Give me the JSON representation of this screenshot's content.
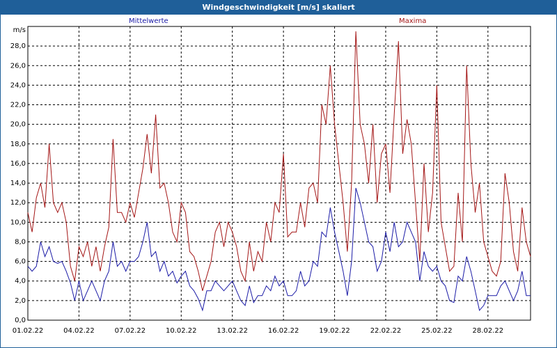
{
  "window": {
    "title": "Windgeschwindigkeit [m/s] skaliert"
  },
  "colors": {
    "titlebar": "#1f5f99",
    "mean": "#1a1aa6",
    "max": "#a31515",
    "grid": "#000000"
  },
  "chart_data": {
    "type": "line",
    "title": "Windgeschwindigkeit [m/s] skaliert",
    "ylabel": "m/s",
    "xlabel": "",
    "ylim": [
      0,
      30
    ],
    "xlim": [
      0,
      29.5
    ],
    "grid": true,
    "yticks": [
      "0,0",
      "2,0",
      "4,0",
      "6,0",
      "8,0",
      "10,0",
      "12,0",
      "14,0",
      "16,0",
      "18,0",
      "20,0",
      "22,0",
      "24,0",
      "26,0",
      "28,0"
    ],
    "xticks": [
      "01.02.22",
      "04.02.22",
      "07.02.22",
      "10.02.22",
      "13.02.22",
      "16.02.22",
      "19.02.22",
      "22.02.22",
      "25.02.22",
      "28.02.22"
    ],
    "series": [
      {
        "name": "Mittelwerte",
        "values": [
          [
            0.0,
            5.5
          ],
          [
            0.25,
            5.0
          ],
          [
            0.5,
            5.5
          ],
          [
            0.75,
            8.0
          ],
          [
            1.0,
            6.5
          ],
          [
            1.25,
            7.5
          ],
          [
            1.5,
            6.0
          ],
          [
            1.75,
            5.8
          ],
          [
            2.0,
            6.0
          ],
          [
            2.25,
            5.0
          ],
          [
            2.5,
            3.8
          ],
          [
            2.75,
            2.0
          ],
          [
            3.0,
            4.0
          ],
          [
            3.25,
            2.0
          ],
          [
            3.5,
            3.0
          ],
          [
            3.75,
            4.0
          ],
          [
            4.0,
            3.0
          ],
          [
            4.25,
            2.0
          ],
          [
            4.5,
            4.0
          ],
          [
            4.75,
            5.0
          ],
          [
            5.0,
            8.0
          ],
          [
            5.25,
            5.5
          ],
          [
            5.5,
            6.0
          ],
          [
            5.75,
            5.0
          ],
          [
            6.0,
            6.0
          ],
          [
            6.25,
            6.0
          ],
          [
            6.5,
            6.5
          ],
          [
            6.75,
            8.0
          ],
          [
            7.0,
            10.0
          ],
          [
            7.25,
            6.5
          ],
          [
            7.5,
            7.0
          ],
          [
            7.75,
            5.0
          ],
          [
            8.0,
            6.0
          ],
          [
            8.25,
            4.5
          ],
          [
            8.5,
            5.0
          ],
          [
            8.75,
            3.8
          ],
          [
            9.0,
            4.5
          ],
          [
            9.25,
            5.0
          ],
          [
            9.5,
            3.5
          ],
          [
            9.75,
            3.0
          ],
          [
            10.0,
            2.2
          ],
          [
            10.25,
            1.0
          ],
          [
            10.5,
            3.0
          ],
          [
            10.75,
            3.0
          ],
          [
            11.0,
            4.0
          ],
          [
            11.25,
            3.5
          ],
          [
            11.5,
            3.0
          ],
          [
            11.75,
            3.5
          ],
          [
            12.0,
            4.0
          ],
          [
            12.25,
            3.0
          ],
          [
            12.5,
            2.0
          ],
          [
            12.75,
            1.5
          ],
          [
            13.0,
            3.5
          ],
          [
            13.25,
            1.8
          ],
          [
            13.5,
            2.5
          ],
          [
            13.75,
            2.5
          ],
          [
            14.0,
            3.5
          ],
          [
            14.25,
            3.0
          ],
          [
            14.5,
            4.5
          ],
          [
            14.75,
            3.5
          ],
          [
            15.0,
            4.0
          ],
          [
            15.25,
            2.5
          ],
          [
            15.5,
            2.5
          ],
          [
            15.75,
            3.0
          ],
          [
            16.0,
            5.0
          ],
          [
            16.25,
            3.5
          ],
          [
            16.5,
            4.0
          ],
          [
            16.75,
            6.0
          ],
          [
            17.0,
            5.5
          ],
          [
            17.25,
            9.0
          ],
          [
            17.5,
            8.5
          ],
          [
            17.75,
            11.5
          ],
          [
            18.0,
            9.0
          ],
          [
            18.25,
            7.0
          ],
          [
            18.5,
            5.0
          ],
          [
            18.75,
            2.5
          ],
          [
            19.0,
            6.0
          ],
          [
            19.25,
            13.5
          ],
          [
            19.5,
            12.0
          ],
          [
            19.75,
            10.0
          ],
          [
            20.0,
            8.0
          ],
          [
            20.25,
            7.5
          ],
          [
            20.5,
            5.0
          ],
          [
            20.75,
            6.0
          ],
          [
            21.0,
            9.0
          ],
          [
            21.25,
            7.0
          ],
          [
            21.5,
            10.0
          ],
          [
            21.75,
            7.5
          ],
          [
            22.0,
            8.0
          ],
          [
            22.25,
            10.0
          ],
          [
            22.5,
            9.0
          ],
          [
            22.75,
            8.0
          ],
          [
            23.0,
            4.0
          ],
          [
            23.25,
            7.0
          ],
          [
            23.5,
            5.5
          ],
          [
            23.75,
            5.0
          ],
          [
            24.0,
            5.5
          ],
          [
            24.25,
            4.0
          ],
          [
            24.5,
            3.5
          ],
          [
            24.75,
            2.0
          ],
          [
            25.0,
            1.8
          ],
          [
            25.25,
            4.5
          ],
          [
            25.5,
            4.0
          ],
          [
            25.75,
            6.5
          ],
          [
            26.0,
            5.0
          ],
          [
            26.25,
            3.0
          ],
          [
            26.5,
            1.0
          ],
          [
            26.75,
            1.5
          ],
          [
            27.0,
            2.5
          ],
          [
            27.25,
            2.5
          ],
          [
            27.5,
            2.5
          ],
          [
            27.75,
            3.5
          ],
          [
            28.0,
            4.0
          ],
          [
            28.25,
            3.0
          ],
          [
            28.5,
            2.0
          ],
          [
            28.75,
            3.0
          ],
          [
            29.0,
            5.0
          ],
          [
            29.25,
            2.5
          ],
          [
            29.5,
            2.5
          ]
        ]
      },
      {
        "name": "Maxima",
        "values": [
          [
            0.0,
            11.0
          ],
          [
            0.25,
            9.0
          ],
          [
            0.5,
            12.5
          ],
          [
            0.75,
            14.0
          ],
          [
            1.0,
            11.5
          ],
          [
            1.25,
            18.0
          ],
          [
            1.5,
            12.0
          ],
          [
            1.75,
            11.0
          ],
          [
            2.0,
            12.0
          ],
          [
            2.25,
            10.0
          ],
          [
            2.5,
            5.5
          ],
          [
            2.75,
            4.0
          ],
          [
            3.0,
            7.5
          ],
          [
            3.25,
            6.5
          ],
          [
            3.5,
            8.0
          ],
          [
            3.75,
            5.5
          ],
          [
            4.0,
            7.5
          ],
          [
            4.25,
            5.0
          ],
          [
            4.5,
            7.5
          ],
          [
            4.75,
            9.5
          ],
          [
            5.0,
            18.5
          ],
          [
            5.25,
            11.0
          ],
          [
            5.5,
            11.0
          ],
          [
            5.75,
            10.0
          ],
          [
            6.0,
            12.0
          ],
          [
            6.25,
            10.5
          ],
          [
            6.5,
            13.0
          ],
          [
            6.75,
            15.5
          ],
          [
            7.0,
            19.0
          ],
          [
            7.25,
            15.0
          ],
          [
            7.5,
            21.0
          ],
          [
            7.75,
            13.5
          ],
          [
            8.0,
            14.0
          ],
          [
            8.25,
            12.0
          ],
          [
            8.5,
            9.0
          ],
          [
            8.75,
            8.0
          ],
          [
            9.0,
            12.0
          ],
          [
            9.25,
            11.0
          ],
          [
            9.5,
            7.0
          ],
          [
            9.75,
            6.5
          ],
          [
            10.0,
            5.0
          ],
          [
            10.25,
            3.0
          ],
          [
            10.5,
            4.5
          ],
          [
            10.75,
            6.0
          ],
          [
            11.0,
            9.0
          ],
          [
            11.25,
            10.0
          ],
          [
            11.5,
            7.5
          ],
          [
            11.75,
            10.0
          ],
          [
            12.0,
            9.0
          ],
          [
            12.25,
            7.5
          ],
          [
            12.5,
            5.0
          ],
          [
            12.75,
            4.0
          ],
          [
            13.0,
            8.0
          ],
          [
            13.25,
            5.0
          ],
          [
            13.5,
            7.0
          ],
          [
            13.75,
            6.0
          ],
          [
            14.0,
            10.0
          ],
          [
            14.25,
            8.0
          ],
          [
            14.5,
            12.0
          ],
          [
            14.75,
            11.0
          ],
          [
            15.0,
            17.0
          ],
          [
            15.25,
            8.5
          ],
          [
            15.5,
            9.0
          ],
          [
            15.75,
            9.0
          ],
          [
            16.0,
            12.0
          ],
          [
            16.25,
            9.5
          ],
          [
            16.5,
            13.5
          ],
          [
            16.75,
            14.0
          ],
          [
            17.0,
            12.0
          ],
          [
            17.25,
            22.0
          ],
          [
            17.5,
            20.0
          ],
          [
            17.75,
            26.0
          ],
          [
            18.0,
            20.0
          ],
          [
            18.25,
            16.0
          ],
          [
            18.5,
            12.0
          ],
          [
            18.75,
            7.0
          ],
          [
            19.0,
            14.0
          ],
          [
            19.25,
            29.5
          ],
          [
            19.5,
            20.0
          ],
          [
            19.75,
            18.0
          ],
          [
            20.0,
            14.0
          ],
          [
            20.25,
            20.0
          ],
          [
            20.5,
            12.0
          ],
          [
            20.75,
            17.0
          ],
          [
            21.0,
            18.0
          ],
          [
            21.25,
            13.0
          ],
          [
            21.5,
            21.0
          ],
          [
            21.75,
            28.5
          ],
          [
            22.0,
            17.0
          ],
          [
            22.25,
            20.5
          ],
          [
            22.5,
            18.0
          ],
          [
            22.75,
            12.0
          ],
          [
            23.0,
            6.0
          ],
          [
            23.25,
            16.0
          ],
          [
            23.5,
            9.0
          ],
          [
            23.75,
            13.0
          ],
          [
            24.0,
            24.0
          ],
          [
            24.25,
            10.0
          ],
          [
            24.5,
            7.5
          ],
          [
            24.75,
            5.0
          ],
          [
            25.0,
            5.5
          ],
          [
            25.25,
            13.0
          ],
          [
            25.5,
            8.0
          ],
          [
            25.75,
            26.0
          ],
          [
            26.0,
            16.0
          ],
          [
            26.25,
            11.0
          ],
          [
            26.5,
            14.0
          ],
          [
            26.75,
            8.0
          ],
          [
            27.0,
            6.5
          ],
          [
            27.25,
            5.0
          ],
          [
            27.5,
            4.5
          ],
          [
            27.75,
            6.0
          ],
          [
            28.0,
            15.0
          ],
          [
            28.25,
            12.0
          ],
          [
            28.5,
            7.0
          ],
          [
            28.75,
            5.0
          ],
          [
            29.0,
            11.5
          ],
          [
            29.25,
            8.0
          ],
          [
            29.5,
            6.5
          ]
        ]
      }
    ]
  }
}
